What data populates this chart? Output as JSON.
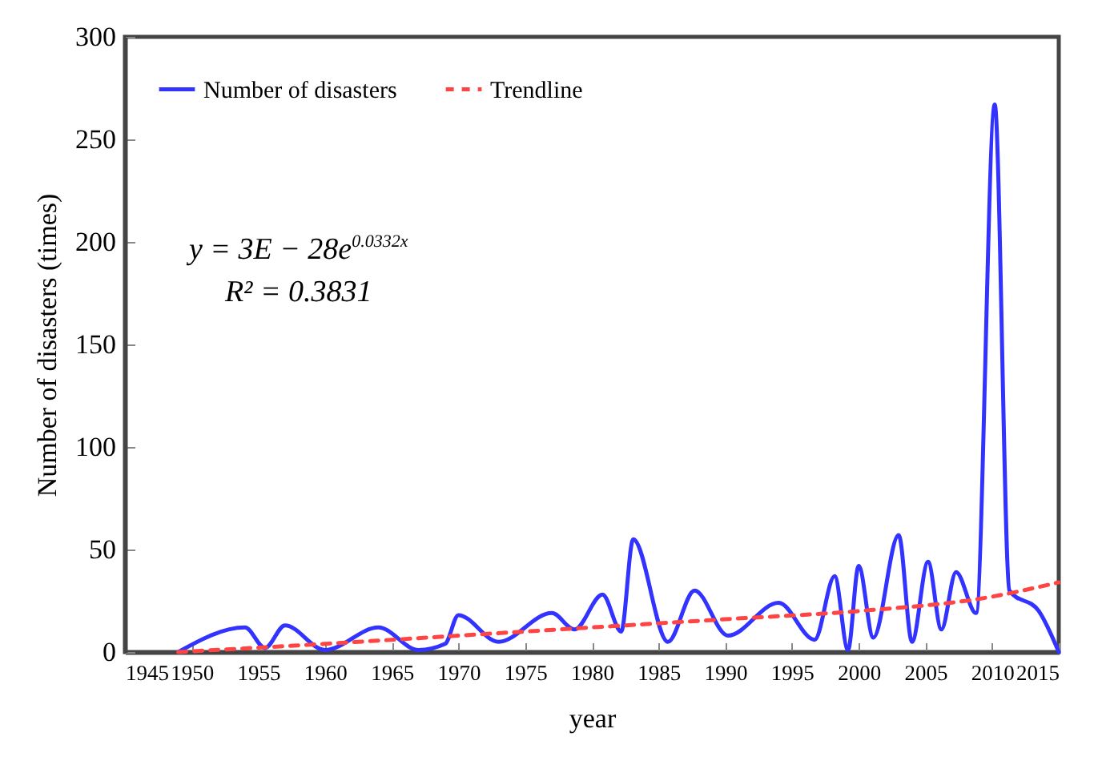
{
  "chart_data": {
    "type": "line",
    "xlabel": "year",
    "ylabel": "Number of disasters (times)",
    "xlim": [
      1945,
      2015
    ],
    "xticks": [
      1945,
      1950,
      1955,
      1960,
      1965,
      1970,
      1975,
      1980,
      1985,
      1990,
      1995,
      2000,
      2005,
      2010,
      2015
    ],
    "ylim": [
      0,
      300
    ],
    "yticks": [
      0,
      50,
      100,
      150,
      200,
      250,
      300
    ],
    "grid": false,
    "legend": "top left",
    "marker": "none",
    "annotations": [
      "y = 3E − 28e$^{0.0332x}$",
      "R² = 0.3831"
    ],
    "series": [
      {
        "name": "Number of disasters",
        "color": "#3333ff",
        "type": "line",
        "line_style": "solid",
        "x": [
          1949,
          1954,
          1955.5,
          1957,
          1960,
          1964,
          1967,
          1969,
          1970,
          1973,
          1977,
          1978.7,
          1980.8,
          1982.2,
          1983.1,
          1985.7,
          1987.7,
          1990.2,
          1994,
          1996.7,
          1998.2,
          1999.2,
          2000,
          2001.1,
          2003,
          2004,
          2005.2,
          2006.2,
          2007.3,
          2008.8,
          2010.2,
          2011.3,
          2013.5,
          2015
        ],
        "values": [
          0,
          12,
          2,
          13,
          1,
          12,
          1,
          4,
          18,
          5,
          19,
          11,
          28,
          10,
          55,
          5,
          30,
          8,
          24,
          6,
          37,
          1,
          42,
          7,
          57,
          5,
          44,
          11,
          39,
          19,
          267,
          30,
          20,
          0
        ]
      },
      {
        "name": "Trendline",
        "color": "#ff4444",
        "type": "line",
        "line_style": "dashed",
        "x": [
          1949,
          1960,
          1970,
          1980,
          1990,
          2000,
          2010,
          2015
        ],
        "values": [
          0,
          4,
          8,
          12,
          16,
          20,
          27,
          34
        ]
      }
    ]
  }
}
